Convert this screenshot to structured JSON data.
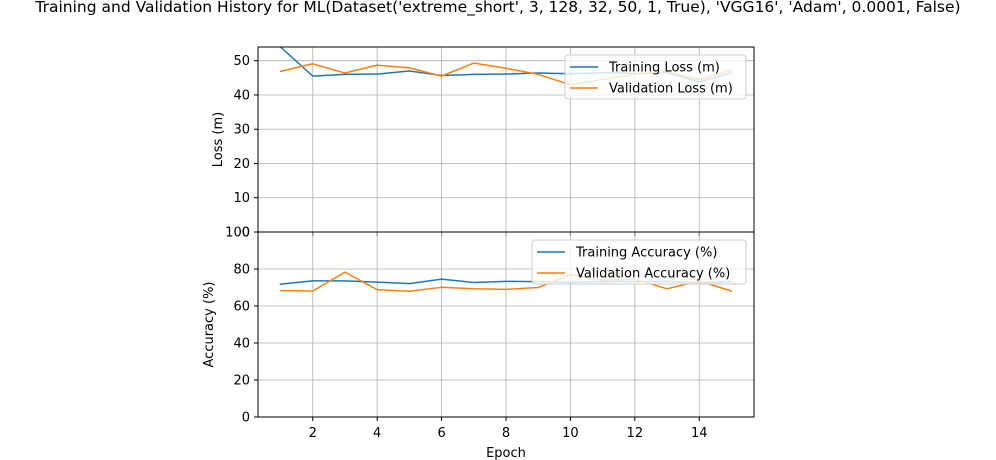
{
  "title": "Training and Validation History for ML(Dataset('extreme_short', 3, 128, 32, 50, 1, True), 'VGG16', 'Adam', 0.0001, False)",
  "colors": {
    "training": "#1f77b4",
    "validation": "#ff7f0e"
  },
  "chart_data": [
    {
      "type": "line",
      "ylabel": "Loss (m)",
      "xlabel": "",
      "xlim": [
        0.3,
        15.7
      ],
      "ylim": [
        0,
        54
      ],
      "xticks": [
        2,
        4,
        6,
        8,
        10,
        12,
        14
      ],
      "yticks": [
        0,
        10,
        20,
        30,
        40,
        50
      ],
      "ytick_labels": [
        "0",
        "10",
        "20",
        "30",
        "40",
        "50"
      ],
      "grid": true,
      "legend_position": "upper right",
      "x": [
        1,
        2,
        3,
        4,
        5,
        6,
        7,
        8,
        9,
        10,
        11,
        12,
        13,
        14,
        15
      ],
      "series": [
        {
          "name": "Training Loss (m)",
          "color": "#1f77b4",
          "values": [
            54,
            45.5,
            46,
            46.1,
            47,
            45.7,
            46,
            46.1,
            46.4,
            46.2,
            46.5,
            46.3,
            46.5,
            43.8,
            46.5
          ]
        },
        {
          "name": "Validation Loss (m)",
          "color": "#ff7f0e",
          "values": [
            46.9,
            49.1,
            46.4,
            48.7,
            47.9,
            45.5,
            49.3,
            47.8,
            46,
            43,
            44.5,
            46.1,
            46.8,
            44.5,
            47.3
          ]
        }
      ]
    },
    {
      "type": "line",
      "ylabel": "Accuracy (%)",
      "xlabel": "Epoch",
      "xlim": [
        0.3,
        15.7
      ],
      "ylim": [
        0,
        100
      ],
      "xticks": [
        2,
        4,
        6,
        8,
        10,
        12,
        14
      ],
      "xtick_labels": [
        "2",
        "4",
        "6",
        "8",
        "10",
        "12",
        "14"
      ],
      "yticks": [
        0,
        20,
        40,
        60,
        80,
        100
      ],
      "ytick_labels": [
        "0",
        "20",
        "40",
        "60",
        "80",
        "100"
      ],
      "grid": true,
      "legend_position": "upper right",
      "x": [
        1,
        2,
        3,
        4,
        5,
        6,
        7,
        8,
        9,
        10,
        11,
        12,
        13,
        14,
        15
      ],
      "series": [
        {
          "name": "Training Accuracy (%)",
          "color": "#1f77b4",
          "values": [
            71.8,
            73.6,
            73.6,
            72.9,
            72.1,
            74.5,
            72.7,
            73.3,
            73.2,
            72.8,
            73.3,
            73.2,
            73.3,
            72.6,
            73.2
          ]
        },
        {
          "name": "Validation Accuracy (%)",
          "color": "#ff7f0e",
          "values": [
            68.3,
            68.1,
            78.3,
            68.8,
            68,
            70.1,
            69.3,
            69,
            70,
            77,
            74,
            74.5,
            69.3,
            73.5,
            68.1
          ]
        }
      ]
    }
  ]
}
